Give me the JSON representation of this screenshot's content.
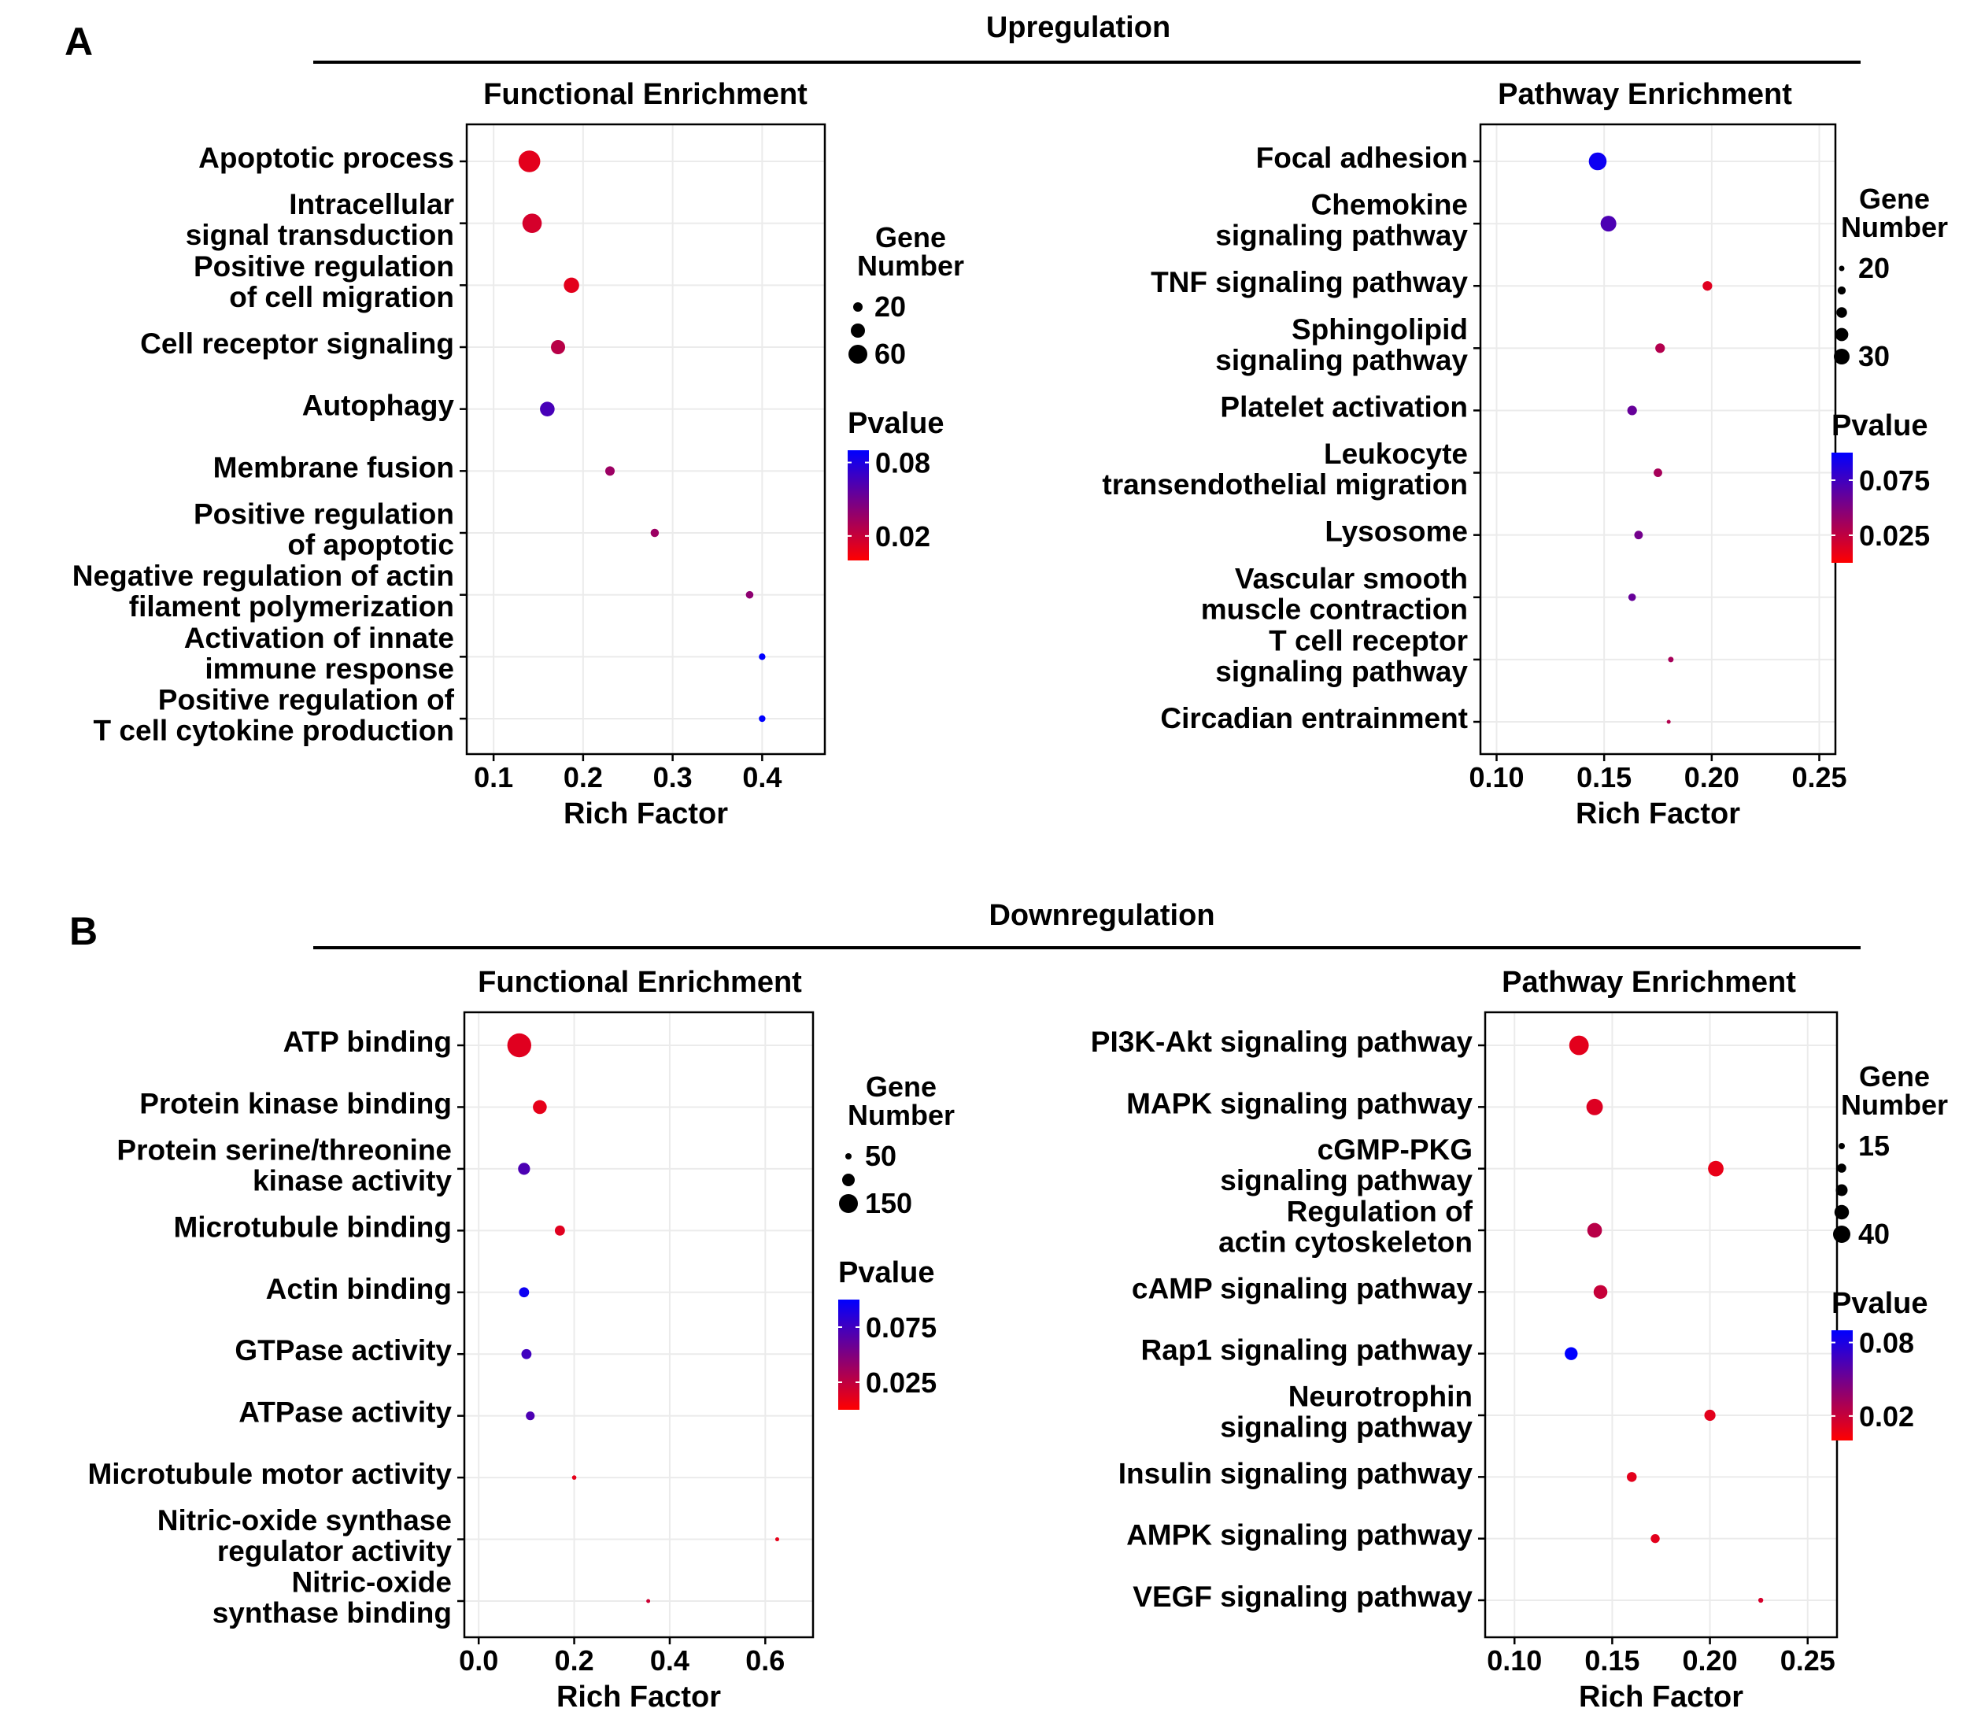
{
  "sections": [
    {
      "label": "A",
      "heading": "Upregulation"
    },
    {
      "label": "B",
      "heading": "Downregulation"
    }
  ],
  "chart_data": [
    {
      "type": "scatter",
      "section": "A",
      "title": "Functional Enrichment",
      "xlabel": "Rich Factor",
      "xlim": [
        0.07,
        0.47
      ],
      "xticks": [
        0.1,
        0.2,
        0.3,
        0.4
      ],
      "xtick_labels": [
        "0.1",
        "0.2",
        "0.3",
        "0.4"
      ],
      "categories": [
        [
          "Apoptotic process"
        ],
        [
          "Intracellular",
          "signal transduction"
        ],
        [
          "Positive regulation",
          "of cell migration"
        ],
        [
          "Cell receptor signaling"
        ],
        [
          "Autophagy"
        ],
        [
          "Membrane fusion"
        ],
        [
          "Positive regulation",
          "of apoptotic"
        ],
        [
          "Negative regulation of actin",
          "filament polymerization"
        ],
        [
          "Activation of innate",
          "immune response"
        ],
        [
          "Positive regulation of",
          "T cell cytokine production"
        ]
      ],
      "points": [
        {
          "rich_factor": 0.14,
          "gene_number": 72,
          "pvalue": 0.01
        },
        {
          "rich_factor": 0.143,
          "gene_number": 62,
          "pvalue": 0.015
        },
        {
          "rich_factor": 0.187,
          "gene_number": 45,
          "pvalue": 0.01
        },
        {
          "rich_factor": 0.172,
          "gene_number": 40,
          "pvalue": 0.025
        },
        {
          "rich_factor": 0.16,
          "gene_number": 42,
          "pvalue": 0.065
        },
        {
          "rich_factor": 0.23,
          "gene_number": 20,
          "pvalue": 0.035
        },
        {
          "rich_factor": 0.28,
          "gene_number": 15,
          "pvalue": 0.035
        },
        {
          "rich_factor": 0.386,
          "gene_number": 12,
          "pvalue": 0.04
        },
        {
          "rich_factor": 0.4,
          "gene_number": 8,
          "pvalue": 0.09
        },
        {
          "rich_factor": 0.4,
          "gene_number": 8,
          "pvalue": 0.09
        }
      ],
      "size_legend": {
        "title": [
          "Gene",
          "Number"
        ],
        "labels": [
          "20",
          "60"
        ],
        "values": [
          20,
          60
        ],
        "dots": [
          20,
          40,
          60
        ]
      },
      "color_legend": {
        "title": "Pvalue",
        "ticks": [
          0.08,
          0.02
        ],
        "tick_labels": [
          "0.08",
          "0.02"
        ],
        "range": [
          0.0,
          0.09
        ]
      },
      "colors": {
        "low": "#ff0000",
        "high": "#0000ff"
      }
    },
    {
      "type": "scatter",
      "section": "A",
      "title": "Pathway Enrichment",
      "xlabel": "Rich Factor",
      "xlim": [
        0.0925,
        0.2575
      ],
      "xticks": [
        0.1,
        0.15,
        0.2,
        0.25
      ],
      "xtick_labels": [
        "0.10",
        "0.15",
        "0.20",
        "0.25"
      ],
      "categories": [
        [
          "Focal adhesion"
        ],
        [
          "Chemokine",
          "signaling pathway"
        ],
        [
          "TNF signaling pathway"
        ],
        [
          "Sphingolipid",
          "signaling pathway"
        ],
        [
          "Platelet activation"
        ],
        [
          "Leukocyte",
          "transendothelial migration"
        ],
        [
          "Lysosome"
        ],
        [
          "Vascular smooth",
          "muscle contraction"
        ],
        [
          "T cell receptor",
          "signaling pathway"
        ],
        [
          "Circadian entrainment"
        ]
      ],
      "points": [
        {
          "rich_factor": 0.147,
          "gene_number": 32,
          "pvalue": 0.095
        },
        {
          "rich_factor": 0.152,
          "gene_number": 30,
          "pvalue": 0.07
        },
        {
          "rich_factor": 0.198,
          "gene_number": 24,
          "pvalue": 0.012
        },
        {
          "rich_factor": 0.176,
          "gene_number": 24,
          "pvalue": 0.03
        },
        {
          "rich_factor": 0.163,
          "gene_number": 24,
          "pvalue": 0.06
        },
        {
          "rich_factor": 0.175,
          "gene_number": 23,
          "pvalue": 0.035
        },
        {
          "rich_factor": 0.166,
          "gene_number": 23,
          "pvalue": 0.055
        },
        {
          "rich_factor": 0.163,
          "gene_number": 22,
          "pvalue": 0.06
        },
        {
          "rich_factor": 0.181,
          "gene_number": 20,
          "pvalue": 0.035
        },
        {
          "rich_factor": 0.18,
          "gene_number": 18,
          "pvalue": 0.03
        }
      ],
      "size_legend": {
        "title": [
          "Gene",
          "Number"
        ],
        "labels": [
          "20",
          "30"
        ],
        "values": [
          20,
          30
        ],
        "dots": [
          20,
          22.5,
          25,
          27.5,
          30
        ]
      },
      "color_legend": {
        "title": "Pvalue",
        "ticks": [
          0.075,
          0.025
        ],
        "tick_labels": [
          "0.075",
          "0.025"
        ],
        "range": [
          0.0,
          0.1
        ]
      },
      "colors": {
        "low": "#ff0000",
        "high": "#0000ff"
      }
    },
    {
      "type": "scatter",
      "section": "B",
      "title": "Functional Enrichment",
      "xlabel": "Rich Factor",
      "xlim": [
        -0.03,
        0.7
      ],
      "xticks": [
        0.0,
        0.2,
        0.4,
        0.6
      ],
      "xtick_labels": [
        "0.0",
        "0.2",
        "0.4",
        "0.6"
      ],
      "categories": [
        [
          "ATP binding"
        ],
        [
          "Protein kinase binding"
        ],
        [
          "Protein serine/threonine",
          "kinase activity"
        ],
        [
          "Microtubule binding"
        ],
        [
          "Actin binding"
        ],
        [
          "GTPase activity"
        ],
        [
          "ATPase activity"
        ],
        [
          "Microtubule motor activity"
        ],
        [
          "Nitric-oxide synthase",
          "regulator activity"
        ],
        [
          "Nitric-oxide",
          "synthase binding"
        ]
      ],
      "points": [
        {
          "rich_factor": 0.085,
          "gene_number": 190,
          "pvalue": 0.012
        },
        {
          "rich_factor": 0.128,
          "gene_number": 110,
          "pvalue": 0.01
        },
        {
          "rich_factor": 0.095,
          "gene_number": 95,
          "pvalue": 0.07
        },
        {
          "rich_factor": 0.17,
          "gene_number": 80,
          "pvalue": 0.012
        },
        {
          "rich_factor": 0.095,
          "gene_number": 80,
          "pvalue": 0.095
        },
        {
          "rich_factor": 0.1,
          "gene_number": 80,
          "pvalue": 0.075
        },
        {
          "rich_factor": 0.108,
          "gene_number": 70,
          "pvalue": 0.07
        },
        {
          "rich_factor": 0.2,
          "gene_number": 35,
          "pvalue": 0.01
        },
        {
          "rich_factor": 0.625,
          "gene_number": 5,
          "pvalue": 0.01
        },
        {
          "rich_factor": 0.355,
          "gene_number": 8,
          "pvalue": 0.02
        }
      ],
      "size_legend": {
        "title": [
          "Gene",
          "Number"
        ],
        "labels": [
          "50",
          "150"
        ],
        "values": [
          50,
          150
        ],
        "dots": [
          50,
          100,
          150
        ]
      },
      "color_legend": {
        "title": "Pvalue",
        "ticks": [
          0.075,
          0.025
        ],
        "tick_labels": [
          "0.075",
          "0.025"
        ],
        "range": [
          0.0,
          0.1
        ]
      },
      "colors": {
        "low": "#ff0000",
        "high": "#0000ff"
      }
    },
    {
      "type": "scatter",
      "section": "B",
      "title": "Pathway Enrichment",
      "xlabel": "Rich Factor",
      "xlim": [
        0.085,
        0.265
      ],
      "xticks": [
        0.1,
        0.15,
        0.2,
        0.25
      ],
      "xtick_labels": [
        "0.10",
        "0.15",
        "0.20",
        "0.25"
      ],
      "categories": [
        [
          "PI3K-Akt signaling pathway"
        ],
        [
          "MAPK signaling pathway"
        ],
        [
          "cGMP-PKG",
          "signaling pathway"
        ],
        [
          "Regulation of",
          "actin cytoskeleton"
        ],
        [
          "cAMP signaling pathway"
        ],
        [
          "Rap1 signaling pathway"
        ],
        [
          "Neurotrophin",
          "signaling pathway"
        ],
        [
          "Insulin signaling pathway"
        ],
        [
          "AMPK signaling pathway"
        ],
        [
          "VEGF signaling pathway"
        ]
      ],
      "points": [
        {
          "rich_factor": 0.133,
          "gene_number": 45,
          "pvalue": 0.01
        },
        {
          "rich_factor": 0.141,
          "gene_number": 38,
          "pvalue": 0.012
        },
        {
          "rich_factor": 0.203,
          "gene_number": 36,
          "pvalue": 0.008
        },
        {
          "rich_factor": 0.141,
          "gene_number": 34,
          "pvalue": 0.025
        },
        {
          "rich_factor": 0.144,
          "gene_number": 32,
          "pvalue": 0.02
        },
        {
          "rich_factor": 0.129,
          "gene_number": 30,
          "pvalue": 0.09
        },
        {
          "rich_factor": 0.2,
          "gene_number": 26,
          "pvalue": 0.01
        },
        {
          "rich_factor": 0.16,
          "gene_number": 23,
          "pvalue": 0.01
        },
        {
          "rich_factor": 0.172,
          "gene_number": 21,
          "pvalue": 0.01
        },
        {
          "rich_factor": 0.226,
          "gene_number": 12,
          "pvalue": 0.015
        }
      ],
      "size_legend": {
        "title": [
          "Gene",
          "Number"
        ],
        "labels": [
          "15",
          "40"
        ],
        "values": [
          15,
          40
        ],
        "dots": [
          15,
          21.25,
          27.5,
          33.75,
          40
        ]
      },
      "color_legend": {
        "title": "Pvalue",
        "ticks": [
          0.08,
          0.02
        ],
        "tick_labels": [
          "0.08",
          "0.02"
        ],
        "range": [
          0.0,
          0.09
        ]
      },
      "colors": {
        "low": "#ff0000",
        "high": "#0000ff"
      }
    }
  ]
}
